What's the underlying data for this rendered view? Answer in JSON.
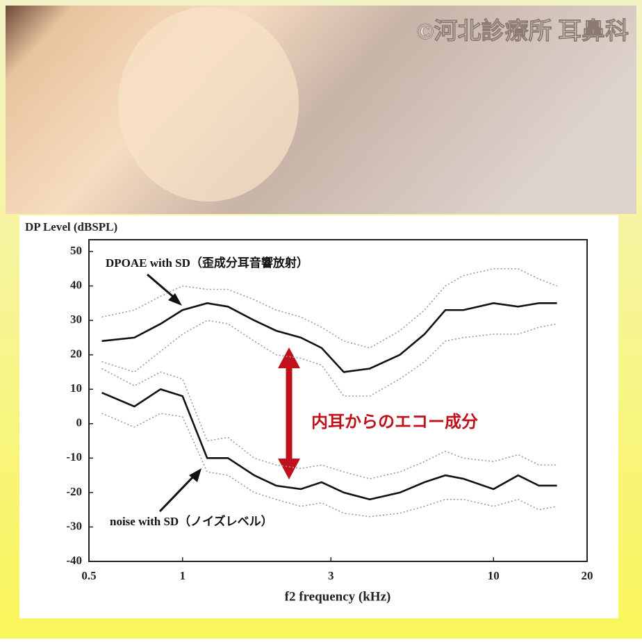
{
  "watermark": "©河北診療所 耳鼻科",
  "chart_data": {
    "type": "line",
    "y_label": "DP Level (dBSPL)",
    "x_label": "f2  frequency (kHz)",
    "annotations": [
      "DPOAE  with  SD（歪成分耳音響放射）",
      "noise  with  SD（ノイズレベル）",
      "内耳からのエコー成分"
    ],
    "x": [
      0.55,
      0.7,
      0.85,
      1,
      1.2,
      1.4,
      1.7,
      2,
      2.4,
      2.8,
      3.3,
      4,
      5,
      6,
      7,
      8,
      10,
      12,
      14,
      16
    ],
    "log_x": true,
    "xlim": [
      0.5,
      20
    ],
    "xticks": [
      0.5,
      1,
      3,
      10,
      20
    ],
    "ylim": [
      -40,
      50
    ],
    "yticks": [
      50,
      40,
      30,
      20,
      10,
      0,
      -10,
      -20,
      -30,
      -40
    ],
    "series": [
      {
        "color": "#111111",
        "dashed": false,
        "values": [
          24,
          25,
          29,
          33,
          35,
          34,
          30,
          27,
          25,
          22,
          15,
          16,
          20,
          26,
          33,
          33,
          35,
          34,
          35,
          35
        ]
      },
      {
        "color": "#999999",
        "dashed": true,
        "values": [
          31,
          33,
          37,
          40,
          39,
          39,
          36,
          33,
          31,
          28,
          24,
          22,
          27,
          33,
          40,
          43,
          45,
          45,
          42,
          40
        ]
      },
      {
        "color": "#999999",
        "dashed": true,
        "values": [
          18,
          15,
          21,
          26,
          30,
          29,
          24,
          20,
          19,
          17,
          8,
          8,
          13,
          18,
          24,
          25,
          26,
          26,
          28,
          29
        ]
      },
      {
        "color": "#111111",
        "dashed": false,
        "values": [
          9,
          5,
          10,
          8,
          -10,
          -10,
          -15,
          -18,
          -19,
          -17,
          -20,
          -22,
          -20,
          -17,
          -15,
          -16,
          -19,
          -15,
          -18,
          -18
        ]
      },
      {
        "color": "#999999",
        "dashed": true,
        "values": [
          16,
          11,
          15,
          13,
          -5,
          -4,
          -10,
          -12,
          -13,
          -12,
          -14,
          -16,
          -14,
          -11,
          -8,
          -10,
          -11,
          -9,
          -12,
          -12
        ]
      },
      {
        "color": "#999999",
        "dashed": true,
        "values": [
          3,
          -1,
          3,
          2,
          -14,
          -15,
          -20,
          -22,
          -24,
          -23,
          -26,
          -27,
          -26,
          -24,
          -22,
          -22,
          -24,
          -22,
          -25,
          -24
        ]
      }
    ]
  }
}
